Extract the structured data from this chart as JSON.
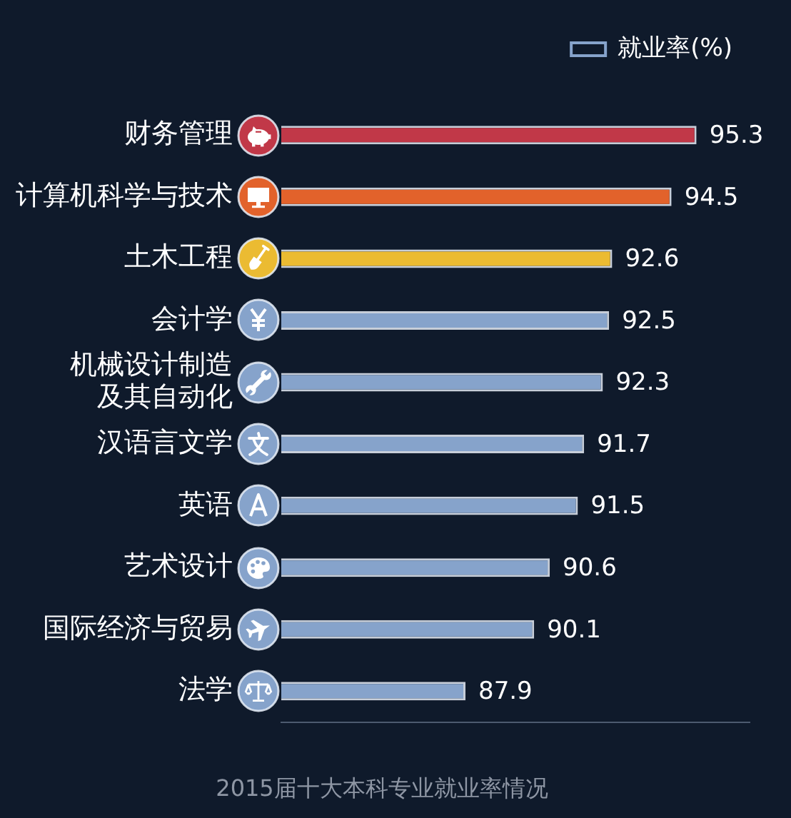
{
  "chart_data": {
    "type": "bar",
    "orientation": "horizontal",
    "title": "2015届十大本科专业就业率情况",
    "categories": [
      "财务管理",
      "计算机科学与技术",
      "土木工程",
      "会计学",
      "机械设计制造及其自动化",
      "汉语言文学",
      "英语",
      "艺术设计",
      "国际经济与贸易",
      "法学"
    ],
    "series": [
      {
        "name": "就业率(%)",
        "color": "#86a3cb",
        "colors": [
          "#c13848",
          "#e2622b",
          "#ebbb32",
          "#86a3cb",
          "#86a3cb",
          "#86a3cb",
          "#86a3cb",
          "#86a3cb",
          "#86a3cb",
          "#86a3cb"
        ],
        "values": [
          95.3,
          94.5,
          92.6,
          92.5,
          92.3,
          91.7,
          91.5,
          90.6,
          90.1,
          87.9
        ]
      }
    ],
    "xlim": [
      82,
      97
    ],
    "data_labels": true,
    "legend": "top right",
    "tick_labels": "y"
  }
}
